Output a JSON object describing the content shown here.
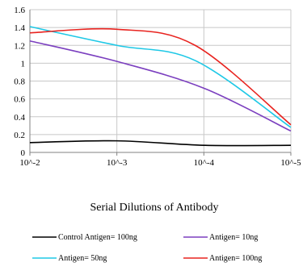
{
  "chart_data": {
    "type": "line",
    "title": "",
    "xlabel": "Serial Dilutions of Antibody",
    "ylabel": "",
    "x": [
      "10^-2",
      "10^-3",
      "10^-4",
      "10^-5"
    ],
    "ylim": [
      0,
      1.6
    ],
    "yticks": [
      "0",
      "0.2",
      "0.4",
      "0.6",
      "0.8",
      "1",
      "1.2",
      "1.4",
      "1.6"
    ],
    "grid": true,
    "legend_position": "bottom",
    "series": [
      {
        "name": "Control Antigen= 100ng",
        "color": "#000000",
        "points": [
          [
            0,
            0.11
          ],
          [
            1,
            0.13
          ],
          [
            2,
            0.08
          ],
          [
            3,
            0.08
          ]
        ]
      },
      {
        "name": "Antigen= 10ng",
        "color": "#7b3fbf",
        "points": [
          [
            0,
            1.25
          ],
          [
            1,
            1.02
          ],
          [
            2,
            0.72
          ],
          [
            3,
            0.24
          ]
        ]
      },
      {
        "name": "Antigen= 50ng",
        "color": "#1ec8e6",
        "points": [
          [
            0,
            1.41
          ],
          [
            1,
            1.2
          ],
          [
            1.9,
            1.03
          ],
          [
            3,
            0.28
          ]
        ]
      },
      {
        "name": "Antigen= 100ng",
        "color": "#e8231f",
        "points": [
          [
            0,
            1.34
          ],
          [
            1,
            1.38
          ],
          [
            1.9,
            1.2
          ],
          [
            3,
            0.31
          ]
        ]
      }
    ]
  }
}
